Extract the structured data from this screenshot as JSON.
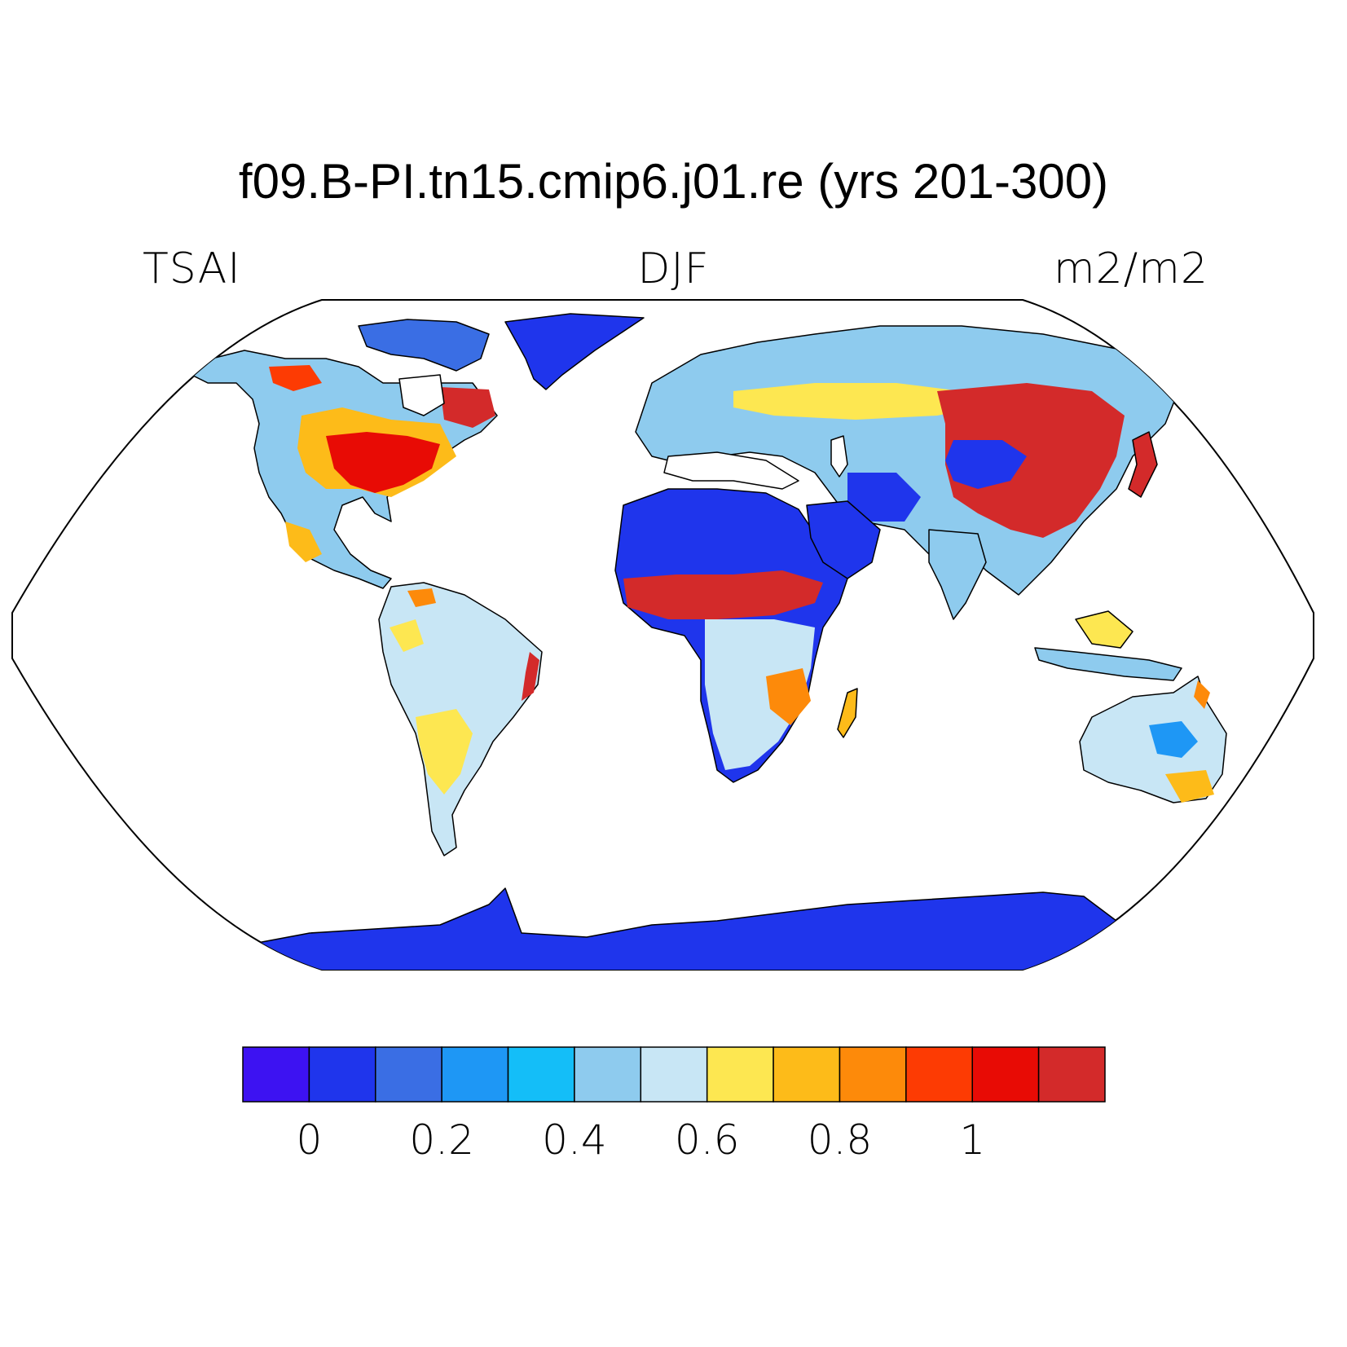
{
  "title": "f09.B-PI.tn15.cmip6.j01.re (yrs 201-300)",
  "variable": "TSAI",
  "season": "DJF",
  "units": "m2/m2",
  "colorbar": {
    "colors": [
      "#3d12f2",
      "#1f35ec",
      "#3a6ee4",
      "#1e97f5",
      "#14bef8",
      "#8ecbee",
      "#c8e6f5",
      "#fde751",
      "#fdbb19",
      "#fd8a0a",
      "#fd3b03",
      "#e80b05",
      "#d32a2a"
    ],
    "levels": [
      0.05,
      0.15,
      0.25,
      0.35,
      0.45,
      0.55,
      0.65,
      0.75,
      0.85,
      0.95,
      1.05,
      1.15
    ],
    "tick_labels": [
      "0",
      "0.2",
      "0.4",
      "0.6",
      "0.8",
      "1"
    ]
  }
}
